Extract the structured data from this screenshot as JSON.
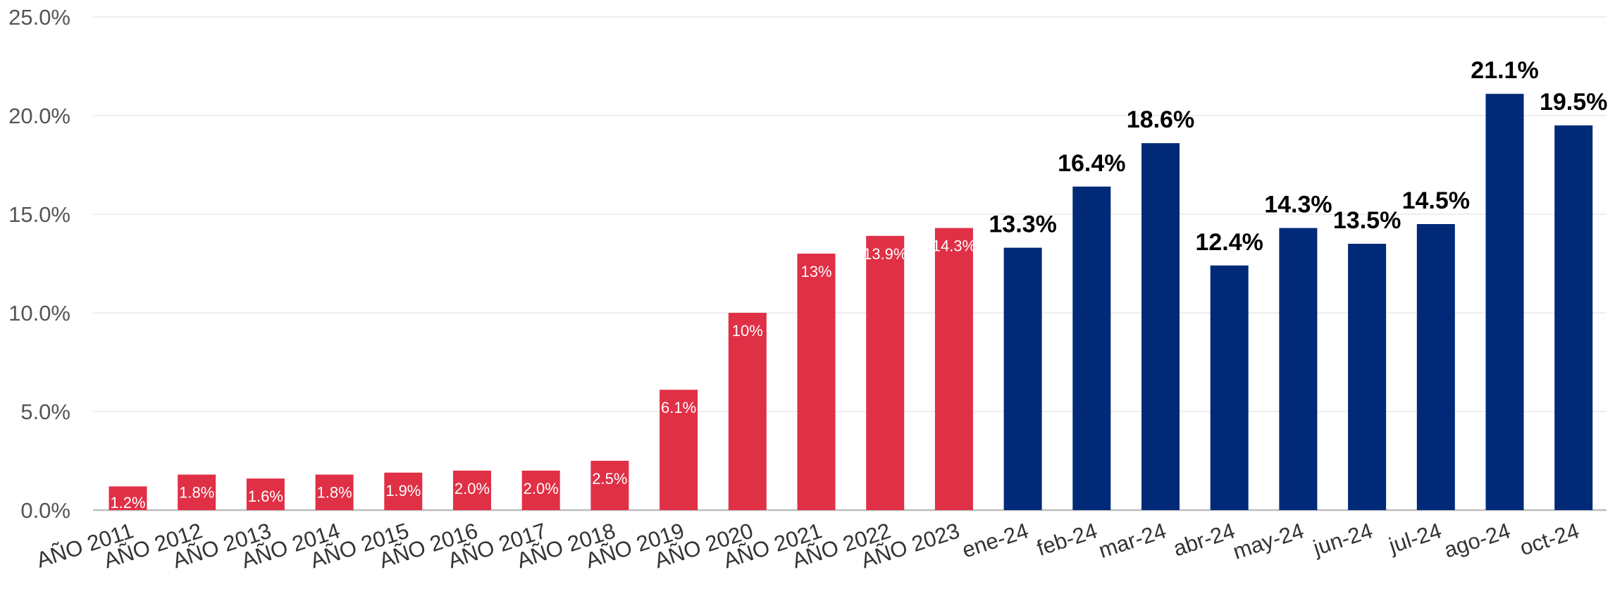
{
  "chart_data": {
    "type": "bar",
    "title": "",
    "xlabel": "",
    "ylabel": "",
    "ylim": [
      0,
      25
    ],
    "y_ticks": [
      "0.0%",
      "5.0%",
      "10.0%",
      "15.0%",
      "20.0%",
      "25.0%"
    ],
    "y_tick_values": [
      0,
      5,
      10,
      15,
      20,
      25
    ],
    "grid": true,
    "legend": "none",
    "colors": {
      "annual": "#e03046",
      "monthly": "#002a78"
    },
    "categories": [
      "AÑO 2011",
      "AÑO 2012",
      "AÑO 2013",
      "AÑO 2014",
      "AÑO 2015",
      "AÑO 2016",
      "AÑO 2017",
      "AÑO 2018",
      "AÑO 2019",
      "AÑO 2020",
      "AÑO 2021",
      "AÑO 2022",
      "AÑO 2023",
      "ene-24",
      "feb-24",
      "mar-24",
      "abr-24",
      "may-24",
      "jun-24",
      "jul-24",
      "ago-24",
      "oct-24"
    ],
    "values": [
      1.2,
      1.8,
      1.6,
      1.8,
      1.9,
      2.0,
      2.0,
      2.5,
      6.1,
      10,
      13,
      13.9,
      14.3,
      13.3,
      16.4,
      18.6,
      12.4,
      14.3,
      13.5,
      14.5,
      21.1,
      19.5
    ],
    "labels": [
      "1.2%",
      "1.8%",
      "1.6%",
      "1.8%",
      "1.9%",
      "2.0%",
      "2.0%",
      "2.5%",
      "6.1%",
      "10%",
      "13%",
      "13.9%",
      "14.3%",
      "13.3%",
      "16.4%",
      "18.6%",
      "12.4%",
      "14.3%",
      "13.5%",
      "14.5%",
      "21.1%",
      "19.5%"
    ],
    "groups": [
      "annual",
      "annual",
      "annual",
      "annual",
      "annual",
      "annual",
      "annual",
      "annual",
      "annual",
      "annual",
      "annual",
      "annual",
      "annual",
      "monthly",
      "monthly",
      "monthly",
      "monthly",
      "monthly",
      "monthly",
      "monthly",
      "monthly",
      "monthly"
    ]
  }
}
